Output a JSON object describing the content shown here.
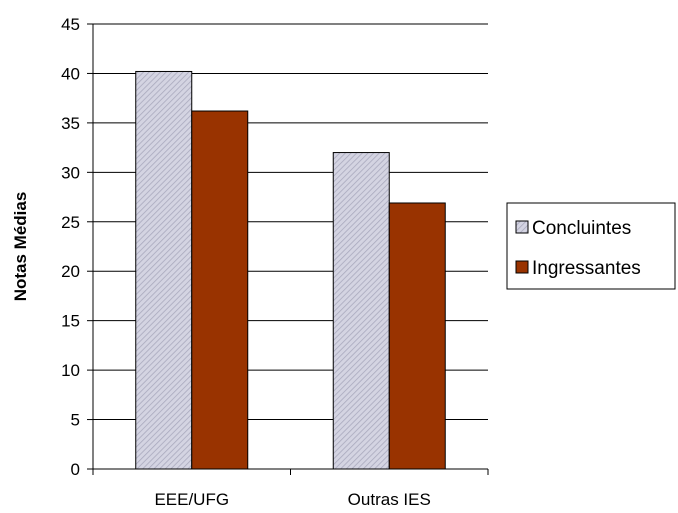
{
  "chart_data": {
    "type": "bar",
    "categories": [
      "EEE/UFG",
      "Outras IES"
    ],
    "series": [
      {
        "name": "Concluintes",
        "values": [
          40.2,
          32.0
        ],
        "color": "#c8c8d8",
        "pattern": "diagonal-hatch"
      },
      {
        "name": "Ingressantes",
        "values": [
          36.2,
          26.9
        ],
        "color": "#993300"
      }
    ],
    "title": "",
    "xlabel": "",
    "ylabel": "Notas Médias",
    "ylim": [
      0,
      45
    ],
    "yticks": [
      0,
      5,
      10,
      15,
      20,
      25,
      30,
      35,
      40,
      45
    ],
    "grid": true,
    "legend_position": "right"
  }
}
